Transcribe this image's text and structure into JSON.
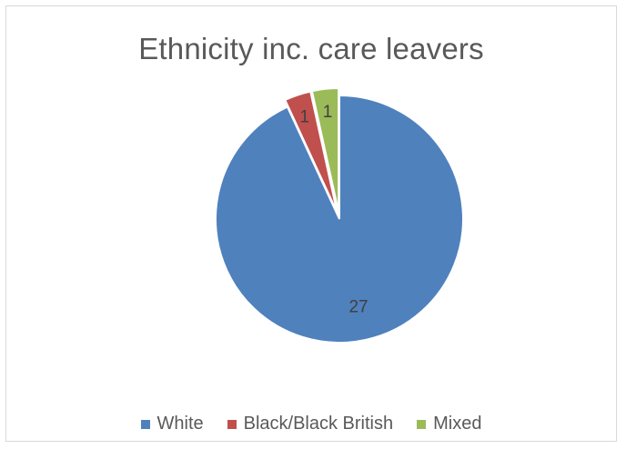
{
  "chart_data": {
    "type": "pie",
    "title": "Ethnicity inc. care leavers",
    "categories": [
      "White",
      "Black/Black British",
      "Mixed"
    ],
    "values": [
      27,
      1,
      1
    ],
    "colors": [
      "#4f81bd",
      "#c0504d",
      "#9bbb59"
    ],
    "data_labels": [
      "27",
      "1",
      "1"
    ],
    "exploded": [
      "Black/Black British",
      "Mixed"
    ],
    "legend_position": "bottom"
  }
}
